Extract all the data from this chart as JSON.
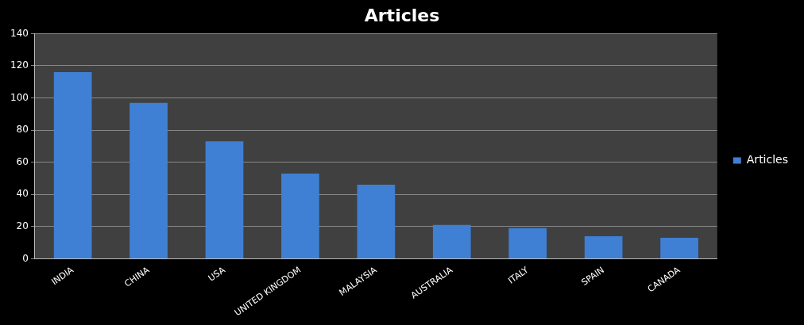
{
  "chart_data": {
    "type": "bar",
    "title": "Articles",
    "categories": [
      "INDIA",
      "CHINA",
      "USA",
      "UNITED KINGDOM",
      "MALAYSIA",
      "AUSTRALIA",
      "ITALY",
      "SPAIN",
      "CANADA"
    ],
    "series": [
      {
        "name": "Articles",
        "color": "#3f7fd4",
        "values": [
          116,
          97,
          73,
          53,
          46,
          21,
          19,
          14,
          13
        ]
      }
    ],
    "ylim": [
      0,
      140
    ],
    "yticks": [
      0,
      20,
      40,
      60,
      80,
      100,
      120,
      140
    ],
    "grid": "y",
    "legend": "right"
  }
}
